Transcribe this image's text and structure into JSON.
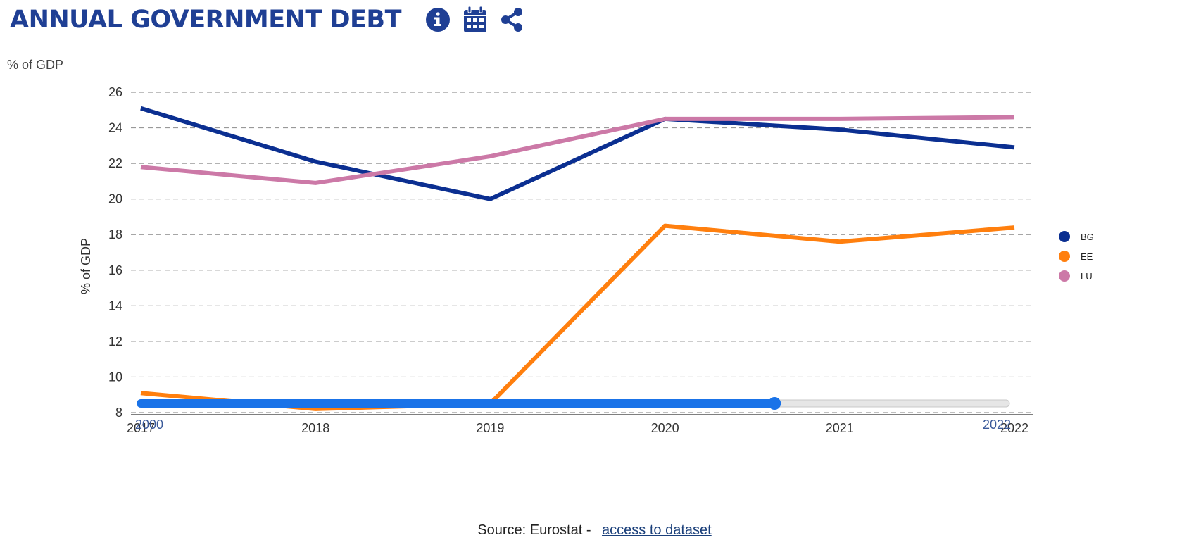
{
  "header": {
    "title": "ANNUAL GOVERNMENT DEBT",
    "icons": [
      "info-icon",
      "calendar-icon",
      "share-icon"
    ]
  },
  "unit_label": "% of GDP",
  "source": {
    "text": "Source: Eurostat -",
    "link_label": "access to dataset"
  },
  "slider": {
    "start_label": "2000",
    "end_label": "2022",
    "value_fraction": 0.73
  },
  "colors": {
    "title": "#1f3f94",
    "grid": "#999999",
    "slider_active": "#1a73e8",
    "slider_track": "#e6e6e6"
  },
  "chart_data": {
    "type": "line",
    "title": "ANNUAL GOVERNMENT DEBT",
    "ylabel": "% of GDP",
    "xlabel": "",
    "x": [
      "2017",
      "2018",
      "2019",
      "2020",
      "2021",
      "2022"
    ],
    "ylim": [
      8,
      26
    ],
    "yticks": [
      8,
      10,
      12,
      14,
      16,
      18,
      20,
      22,
      24,
      26
    ],
    "grid": true,
    "legend_position": "right",
    "series": [
      {
        "name": "BG",
        "color": "#0b2f91",
        "values": [
          25.1,
          22.1,
          20.0,
          24.5,
          23.9,
          22.9
        ]
      },
      {
        "name": "EE",
        "color": "#ff7f0e",
        "values": [
          9.1,
          8.2,
          8.5,
          18.5,
          17.6,
          18.4
        ]
      },
      {
        "name": "LU",
        "color": "#cc79a7",
        "values": [
          21.8,
          20.9,
          22.4,
          24.5,
          24.5,
          24.6
        ]
      }
    ]
  }
}
